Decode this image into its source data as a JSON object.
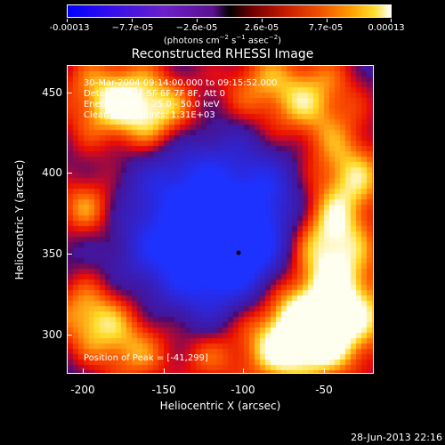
{
  "colorbar": {
    "tick_labels": [
      "-0.00013",
      "−7.7e-05",
      "−2.6e-05",
      "2.6e-05",
      "7.7e-05",
      "0.00013"
    ],
    "units_prefix": "(photons cm",
    "units_sup1": "−2",
    "units_mid1": " s",
    "units_sup2": "−1",
    "units_mid2": " asec",
    "units_sup3": "−2",
    "units_suffix": ")"
  },
  "title": "Reconstructed RHESSI Image",
  "info": {
    "time_range": "30-Mar-2004 09:14:00.000 to 09:15:52.000",
    "detectors": "Detectors: 4F 5F 6F 7F 8F, Att 0",
    "energy": "Energy Range: 25.0 - 50.0 keV",
    "clean": "Clean    Total counts: 1.31E+03",
    "peak": "Position of Peak = [-41,299]"
  },
  "axes": {
    "xlabel": "Heliocentric X (arcsec)",
    "ylabel": "Heliocentric Y (arcsec)",
    "x_ticks": [
      "-200",
      "-150",
      "-100",
      "-50"
    ],
    "y_ticks": [
      "450",
      "400",
      "350",
      "300"
    ],
    "x_tick_values": [
      -200,
      -150,
      -100,
      -50
    ],
    "y_tick_values": [
      450,
      400,
      350,
      300
    ],
    "xlim": [
      -210,
      -17
    ],
    "ylim": [
      274,
      468
    ]
  },
  "timestamp": "28-Jun-2013 22:16",
  "colors": {
    "background": "#000000",
    "foreground": "#ffffff"
  }
}
